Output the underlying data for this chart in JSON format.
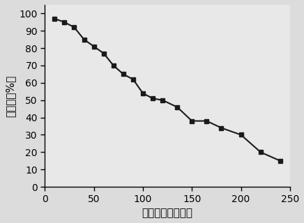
{
  "x_data": [
    10,
    20,
    30,
    40,
    50,
    60,
    70,
    80,
    90,
    100,
    110,
    120,
    135,
    150,
    165,
    180,
    200,
    220,
    240
  ],
  "y_data": [
    97,
    95,
    92,
    85,
    81,
    77,
    70,
    65,
    62,
    54,
    51,
    50,
    46,
    38,
    38,
    34,
    30,
    20,
    15
  ],
  "xlabel": "降解时间（分钟）",
  "ylabel": "降解率（%）",
  "xlim": [
    0,
    250
  ],
  "ylim": [
    0,
    105
  ],
  "xticks": [
    0,
    50,
    100,
    150,
    200,
    250
  ],
  "yticks": [
    0,
    10,
    20,
    30,
    40,
    50,
    60,
    70,
    80,
    90,
    100
  ],
  "line_color": "#1a1a1a",
  "marker": "s",
  "marker_size": 5,
  "line_width": 1.5,
  "bg_color": "#e8e8e8",
  "font_size_label": 11,
  "font_size_tick": 10
}
